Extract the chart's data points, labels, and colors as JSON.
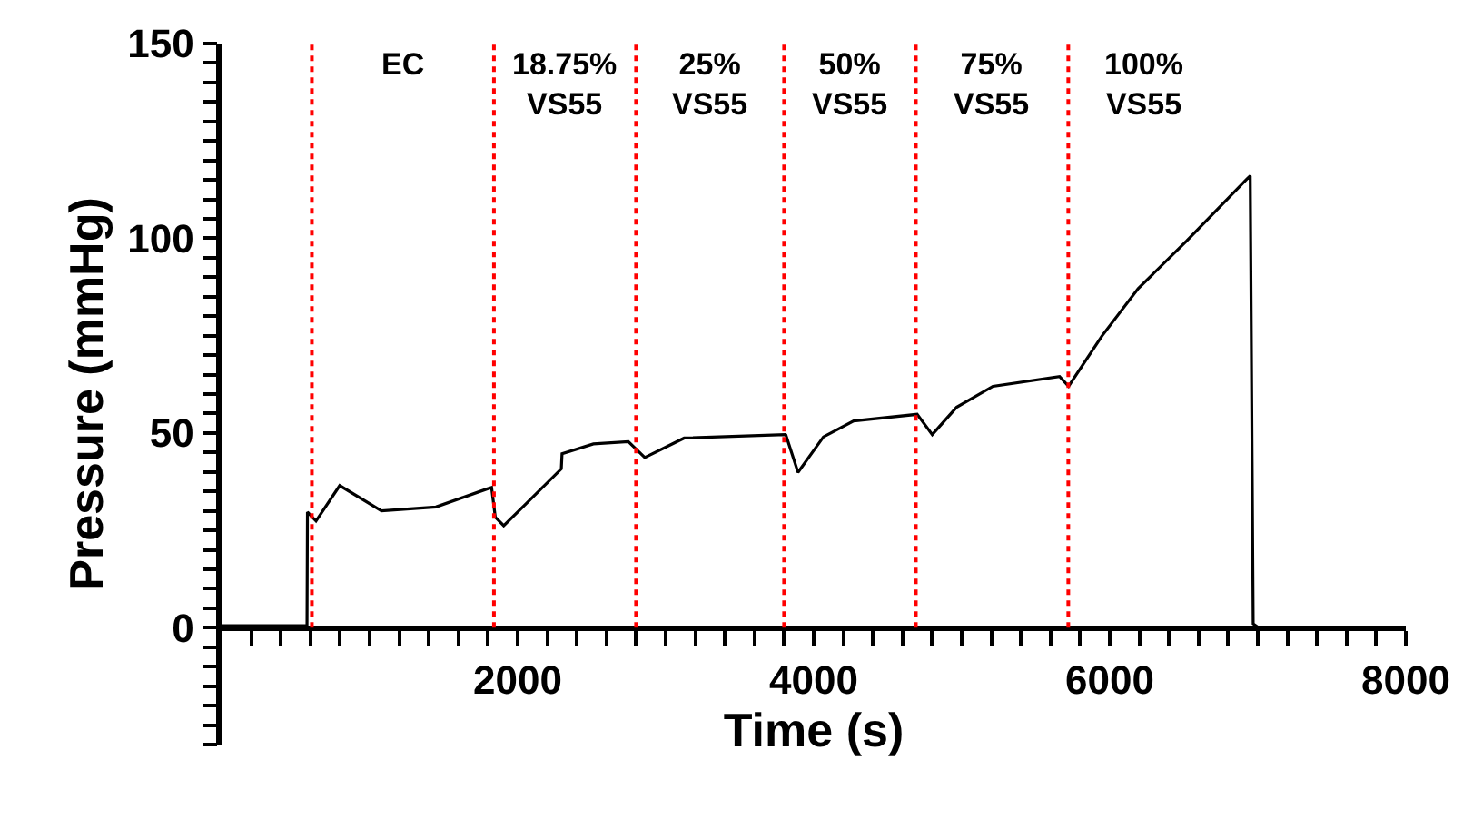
{
  "chart_data": {
    "type": "line",
    "xlabel": "Time (s)",
    "ylabel": "Pressure (mmHg)",
    "x": [
      0,
      300,
      577,
      580,
      638,
      798,
      1080,
      1448,
      1791,
      1824,
      1849,
      1906,
      2061,
      2295,
      2300,
      2512,
      2748,
      2859,
      3125,
      3808,
      3812,
      3894,
      4066,
      4270,
      4699,
      4801,
      4965,
      5211,
      5661,
      5722,
      5947,
      6192,
      6519,
      6928,
      6949,
      6969,
      7006
    ],
    "series": [
      {
        "color": "#000000",
        "values": [
          0.5,
          0.5,
          0.5,
          29.7,
          27.4,
          36.5,
          30,
          31,
          35.6,
          36,
          28.4,
          26.2,
          32,
          40.8,
          44.7,
          47.2,
          47.8,
          43.7,
          48.7,
          49.6,
          49.5,
          39.9,
          49.0,
          53.1,
          54.8,
          49.6,
          56.6,
          62,
          64.5,
          62,
          74.9,
          87.1,
          99.3,
          115.3,
          116,
          1,
          0
        ]
      }
    ],
    "xlim": [
      0,
      8000
    ],
    "ylim": [
      -30,
      150
    ],
    "xticks": [
      {
        "value": 200,
        "label": null
      },
      {
        "value": 400,
        "label": null
      },
      {
        "value": 600,
        "label": null
      },
      {
        "value": 800,
        "label": null
      },
      {
        "value": 1000,
        "label": null
      },
      {
        "value": 1200,
        "label": null
      },
      {
        "value": 1400,
        "label": null
      },
      {
        "value": 1600,
        "label": null
      },
      {
        "value": 1800,
        "label": null
      },
      2000,
      {
        "value": 2200,
        "label": null
      },
      {
        "value": 2400,
        "label": null
      },
      {
        "value": 2600,
        "label": null
      },
      {
        "value": 2800,
        "label": null
      },
      {
        "value": 3000,
        "label": null
      },
      {
        "value": 3200,
        "label": null
      },
      {
        "value": 3400,
        "label": null
      },
      {
        "value": 3600,
        "label": null
      },
      {
        "value": 3800,
        "label": null
      },
      4000,
      {
        "value": 4200,
        "label": null
      },
      {
        "value": 4400,
        "label": null
      },
      {
        "value": 4600,
        "label": null
      },
      {
        "value": 4800,
        "label": null
      },
      {
        "value": 5000,
        "label": null
      },
      {
        "value": 5200,
        "label": null
      },
      {
        "value": 5400,
        "label": null
      },
      {
        "value": 5600,
        "label": null
      },
      {
        "value": 5800,
        "label": null
      },
      6000,
      {
        "value": 6200,
        "label": null
      },
      {
        "value": 6400,
        "label": null
      },
      {
        "value": 6600,
        "label": null
      },
      {
        "value": 6800,
        "label": null
      },
      {
        "value": 7000,
        "label": null
      },
      {
        "value": 7200,
        "label": null
      },
      {
        "value": 7400,
        "label": null
      },
      {
        "value": 7600,
        "label": null
      },
      {
        "value": 7800,
        "label": null
      },
      8000
    ],
    "yticks": [
      {
        "value": -30,
        "label": null
      },
      {
        "value": -25,
        "label": null
      },
      {
        "value": -20,
        "label": null
      },
      {
        "value": -15,
        "label": null
      },
      {
        "value": -10,
        "label": null
      },
      {
        "value": -5,
        "label": null
      },
      0,
      {
        "value": 5,
        "label": null
      },
      {
        "value": 10,
        "label": null
      },
      {
        "value": 15,
        "label": null
      },
      {
        "value": 20,
        "label": null
      },
      {
        "value": 25,
        "label": null
      },
      {
        "value": 30,
        "label": null
      },
      {
        "value": 35,
        "label": null
      },
      {
        "value": 40,
        "label": null
      },
      {
        "value": 45,
        "label": null
      },
      50,
      {
        "value": 55,
        "label": null
      },
      {
        "value": 60,
        "label": null
      },
      {
        "value": 65,
        "label": null
      },
      {
        "value": 70,
        "label": null
      },
      {
        "value": 75,
        "label": null
      },
      {
        "value": 80,
        "label": null
      },
      {
        "value": 85,
        "label": null
      },
      {
        "value": 90,
        "label": null
      },
      {
        "value": 95,
        "label": null
      },
      100,
      {
        "value": 105,
        "label": null
      },
      {
        "value": 110,
        "label": null
      },
      {
        "value": 115,
        "label": null
      },
      {
        "value": 120,
        "label": null
      },
      {
        "value": 125,
        "label": null
      },
      {
        "value": 130,
        "label": null
      },
      {
        "value": 135,
        "label": null
      },
      {
        "value": 140,
        "label": null
      },
      {
        "value": 145,
        "label": null
      },
      150
    ],
    "ref_lines": [
      {
        "axis": "x",
        "value": 610,
        "label": "EC",
        "color": "#ff0000",
        "line_style": "dotted"
      },
      {
        "axis": "x",
        "value": 1840,
        "label": "18.75%\nVS55",
        "color": "#ff0000",
        "line_style": "dotted"
      },
      {
        "axis": "x",
        "value": 2800,
        "label": "25%\nVS55",
        "color": "#ff0000",
        "line_style": "dotted"
      },
      {
        "axis": "x",
        "value": 3800,
        "label": "50%\nVS55",
        "color": "#ff0000",
        "line_style": "dotted"
      },
      {
        "axis": "x",
        "value": 4690,
        "label": "75%\nVS55",
        "color": "#ff0000",
        "line_style": "dotted"
      },
      {
        "axis": "x",
        "value": 5720,
        "label": "100%\nVS55",
        "color": "#ff0000",
        "line_style": "dotted"
      }
    ],
    "marker": "none",
    "line_style": "solid"
  }
}
